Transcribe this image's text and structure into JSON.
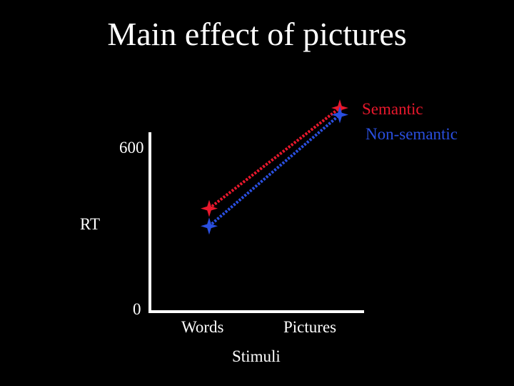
{
  "chart_data": {
    "type": "line",
    "title": "Main effect of pictures",
    "xlabel": "Stimuli",
    "ylabel": "RT",
    "categories": [
      "Words",
      "Pictures"
    ],
    "yticks": [
      0,
      600
    ],
    "ylim": [
      0,
      700
    ],
    "legend_placement": "right, at line ends",
    "series": [
      {
        "name": "Semantic",
        "values": [
          380,
          750
        ],
        "color": "#e8182c",
        "marker": "star",
        "line": "dotted"
      },
      {
        "name": "Non-semantic",
        "values": [
          315,
          725
        ],
        "color": "#2a4fe0",
        "marker": "star",
        "line": "dotted"
      }
    ]
  },
  "colors": {
    "background": "#000000",
    "text": "#ffffff",
    "axis": "#ffffff"
  }
}
